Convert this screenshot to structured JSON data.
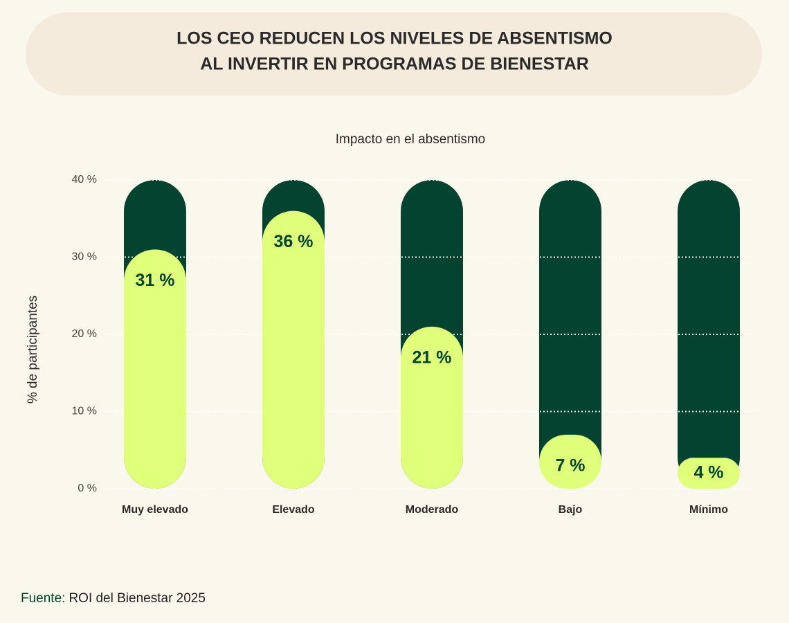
{
  "chart_data": {
    "type": "bar",
    "title": [
      "LOS CEO REDUCEN LOS NIVELES DE ABSENTISMO",
      "AL INVERTIR EN PROGRAMAS DE BIENESTAR"
    ],
    "subtitle": "Impacto en el absentismo",
    "y_label": "% de participantes",
    "categories": [
      "Muy elevado",
      "Elevado",
      "Moderado",
      "Bajo",
      "Mínimo"
    ],
    "values": [
      31,
      36,
      21,
      7,
      4
    ],
    "value_labels": [
      "31 %",
      "36 %",
      "21 %",
      "7 %",
      "4 %"
    ],
    "color": "#e0ff7a",
    "track_color": "#03432f",
    "ylim": [
      0,
      40
    ],
    "yticks": [
      {
        "value": 0,
        "label": "0 %"
      },
      {
        "value": 10,
        "label": "10 %"
      },
      {
        "value": 20,
        "label": "20 %"
      },
      {
        "value": 30,
        "label": "30 %"
      },
      {
        "value": 40,
        "label": "40 %"
      }
    ],
    "grid": true,
    "source": {
      "label": "Fuente:",
      "text": "ROI del Bienestar 2025"
    }
  }
}
